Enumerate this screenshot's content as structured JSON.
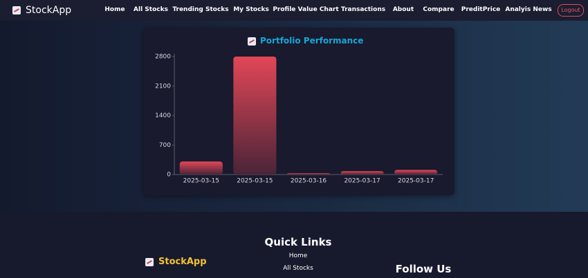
{
  "nav": {
    "brand": "StockApp",
    "links": [
      "Home",
      "All Stocks",
      "Trending Stocks",
      "My Stocks",
      "Profile Value Chart",
      "Transactions",
      "About",
      "Compare",
      "PreditPrice",
      "Analyis News"
    ],
    "logout": "Logout"
  },
  "chart_data": {
    "type": "bar",
    "title": "Portfolio Performance",
    "categories": [
      "2025-03-15",
      "2025-03-15",
      "2025-03-16",
      "2025-03-17",
      "2025-03-17"
    ],
    "values": [
      310,
      2800,
      30,
      80,
      110
    ],
    "color": "#e24757",
    "ylim": [
      0,
      2800
    ],
    "yticks": [
      0,
      700,
      1400,
      2100,
      2800
    ],
    "grid": false
  },
  "footer": {
    "quick_links_title": "Quick Links",
    "links": [
      "Home",
      "All Stocks"
    ],
    "brand": "StockApp",
    "follow_title": "Follow Us"
  }
}
